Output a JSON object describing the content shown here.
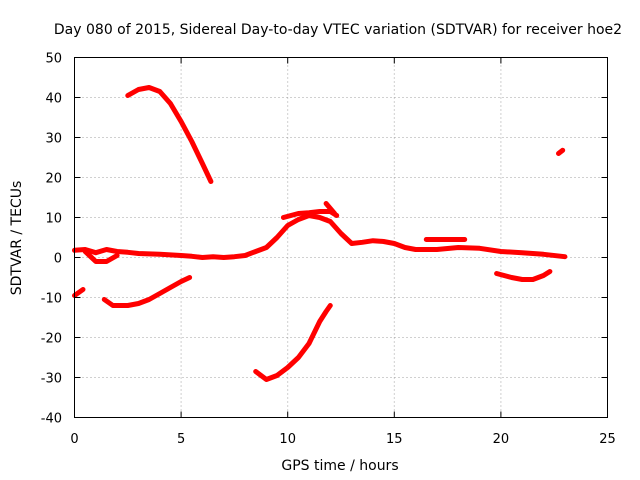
{
  "chart_data": {
    "type": "scatter",
    "title": "Day 080 of 2015, Sidereal Day-to-day VTEC variation (SDTVAR) for receiver hoe2",
    "xlabel": "GPS time / hours",
    "ylabel": "SDTVAR / TECUs",
    "xlim": [
      0,
      25
    ],
    "ylim": [
      -40,
      50
    ],
    "xticks": [
      0,
      5,
      10,
      15,
      20,
      25
    ],
    "yticks": [
      -40,
      -30,
      -20,
      -10,
      0,
      10,
      20,
      30,
      40,
      50
    ],
    "grid": true,
    "series_color": "#ff0000",
    "series": [
      {
        "name": "main-band",
        "points": [
          [
            0,
            1.8
          ],
          [
            0.5,
            2
          ],
          [
            1,
            1.2
          ],
          [
            1.5,
            2
          ],
          [
            2,
            1.5
          ],
          [
            2.5,
            1.3
          ],
          [
            3,
            1
          ],
          [
            4,
            0.8
          ],
          [
            5,
            0.5
          ],
          [
            5.5,
            0.3
          ],
          [
            6,
            0
          ],
          [
            6.5,
            0.2
          ],
          [
            7,
            0
          ],
          [
            7.5,
            0.2
          ],
          [
            8,
            0.5
          ],
          [
            8.5,
            1.5
          ],
          [
            9,
            2.5
          ],
          [
            9.5,
            5
          ],
          [
            10,
            8
          ],
          [
            10.5,
            9.5
          ],
          [
            11,
            10.5
          ],
          [
            11.5,
            10
          ],
          [
            12,
            9
          ],
          [
            12.5,
            6
          ],
          [
            13,
            3.5
          ],
          [
            13.5,
            3.8
          ],
          [
            14,
            4.2
          ],
          [
            14.5,
            4
          ],
          [
            15,
            3.5
          ],
          [
            15.5,
            2.5
          ],
          [
            16,
            2
          ],
          [
            17,
            2
          ],
          [
            18,
            2.5
          ],
          [
            19,
            2.3
          ],
          [
            20,
            1.5
          ],
          [
            21,
            1.2
          ],
          [
            22,
            0.8
          ],
          [
            23,
            0.2
          ]
        ]
      },
      {
        "name": "upper-segment-a",
        "points": [
          [
            9.8,
            10
          ],
          [
            10.5,
            11
          ],
          [
            11,
            11.2
          ],
          [
            11.5,
            11.5
          ],
          [
            12,
            11.5
          ],
          [
            12.3,
            10.5
          ]
        ]
      },
      {
        "name": "upper-segment-b",
        "points": [
          [
            11.8,
            13.5
          ],
          [
            12.2,
            11
          ]
        ]
      },
      {
        "name": "dip-early",
        "points": [
          [
            0.5,
            1.5
          ],
          [
            0.8,
            0
          ],
          [
            1,
            -1
          ],
          [
            1.5,
            -1
          ],
          [
            2,
            0.5
          ]
        ]
      },
      {
        "name": "offset-mid",
        "points": [
          [
            16.5,
            4.5
          ],
          [
            17.5,
            4.5
          ],
          [
            18.3,
            4.5
          ]
        ]
      },
      {
        "name": "negative-right",
        "points": [
          [
            19.8,
            -4
          ],
          [
            20.5,
            -5
          ],
          [
            21,
            -5.5
          ],
          [
            21.5,
            -5.5
          ],
          [
            22,
            -4.5
          ],
          [
            22.3,
            -3.5
          ]
        ]
      },
      {
        "name": "high-arc",
        "points": [
          [
            2.5,
            40.5
          ],
          [
            3,
            42
          ],
          [
            3.5,
            42.5
          ],
          [
            4,
            41.5
          ],
          [
            4.5,
            38.5
          ],
          [
            5,
            34
          ],
          [
            5.5,
            29
          ],
          [
            6,
            23.5
          ],
          [
            6.4,
            19
          ]
        ]
      },
      {
        "name": "high-dot",
        "points": [
          [
            22.7,
            26
          ],
          [
            22.9,
            26.8
          ]
        ]
      },
      {
        "name": "low-arc-left",
        "points": [
          [
            1.4,
            -10.5
          ],
          [
            1.8,
            -12
          ],
          [
            2.5,
            -12
          ],
          [
            3,
            -11.5
          ],
          [
            3.5,
            -10.5
          ],
          [
            4,
            -9
          ],
          [
            4.5,
            -7.5
          ],
          [
            5,
            -6
          ],
          [
            5.4,
            -5
          ]
        ]
      },
      {
        "name": "low-start",
        "points": [
          [
            0,
            -9.5
          ],
          [
            0.4,
            -8
          ]
        ]
      },
      {
        "name": "low-arc-mid",
        "points": [
          [
            8.5,
            -28.5
          ],
          [
            9,
            -30.5
          ],
          [
            9.5,
            -29.5
          ],
          [
            10,
            -27.5
          ],
          [
            10.5,
            -25
          ],
          [
            11,
            -21.5
          ],
          [
            11.5,
            -16
          ],
          [
            11.8,
            -13.5
          ],
          [
            12,
            -12
          ]
        ]
      }
    ]
  }
}
